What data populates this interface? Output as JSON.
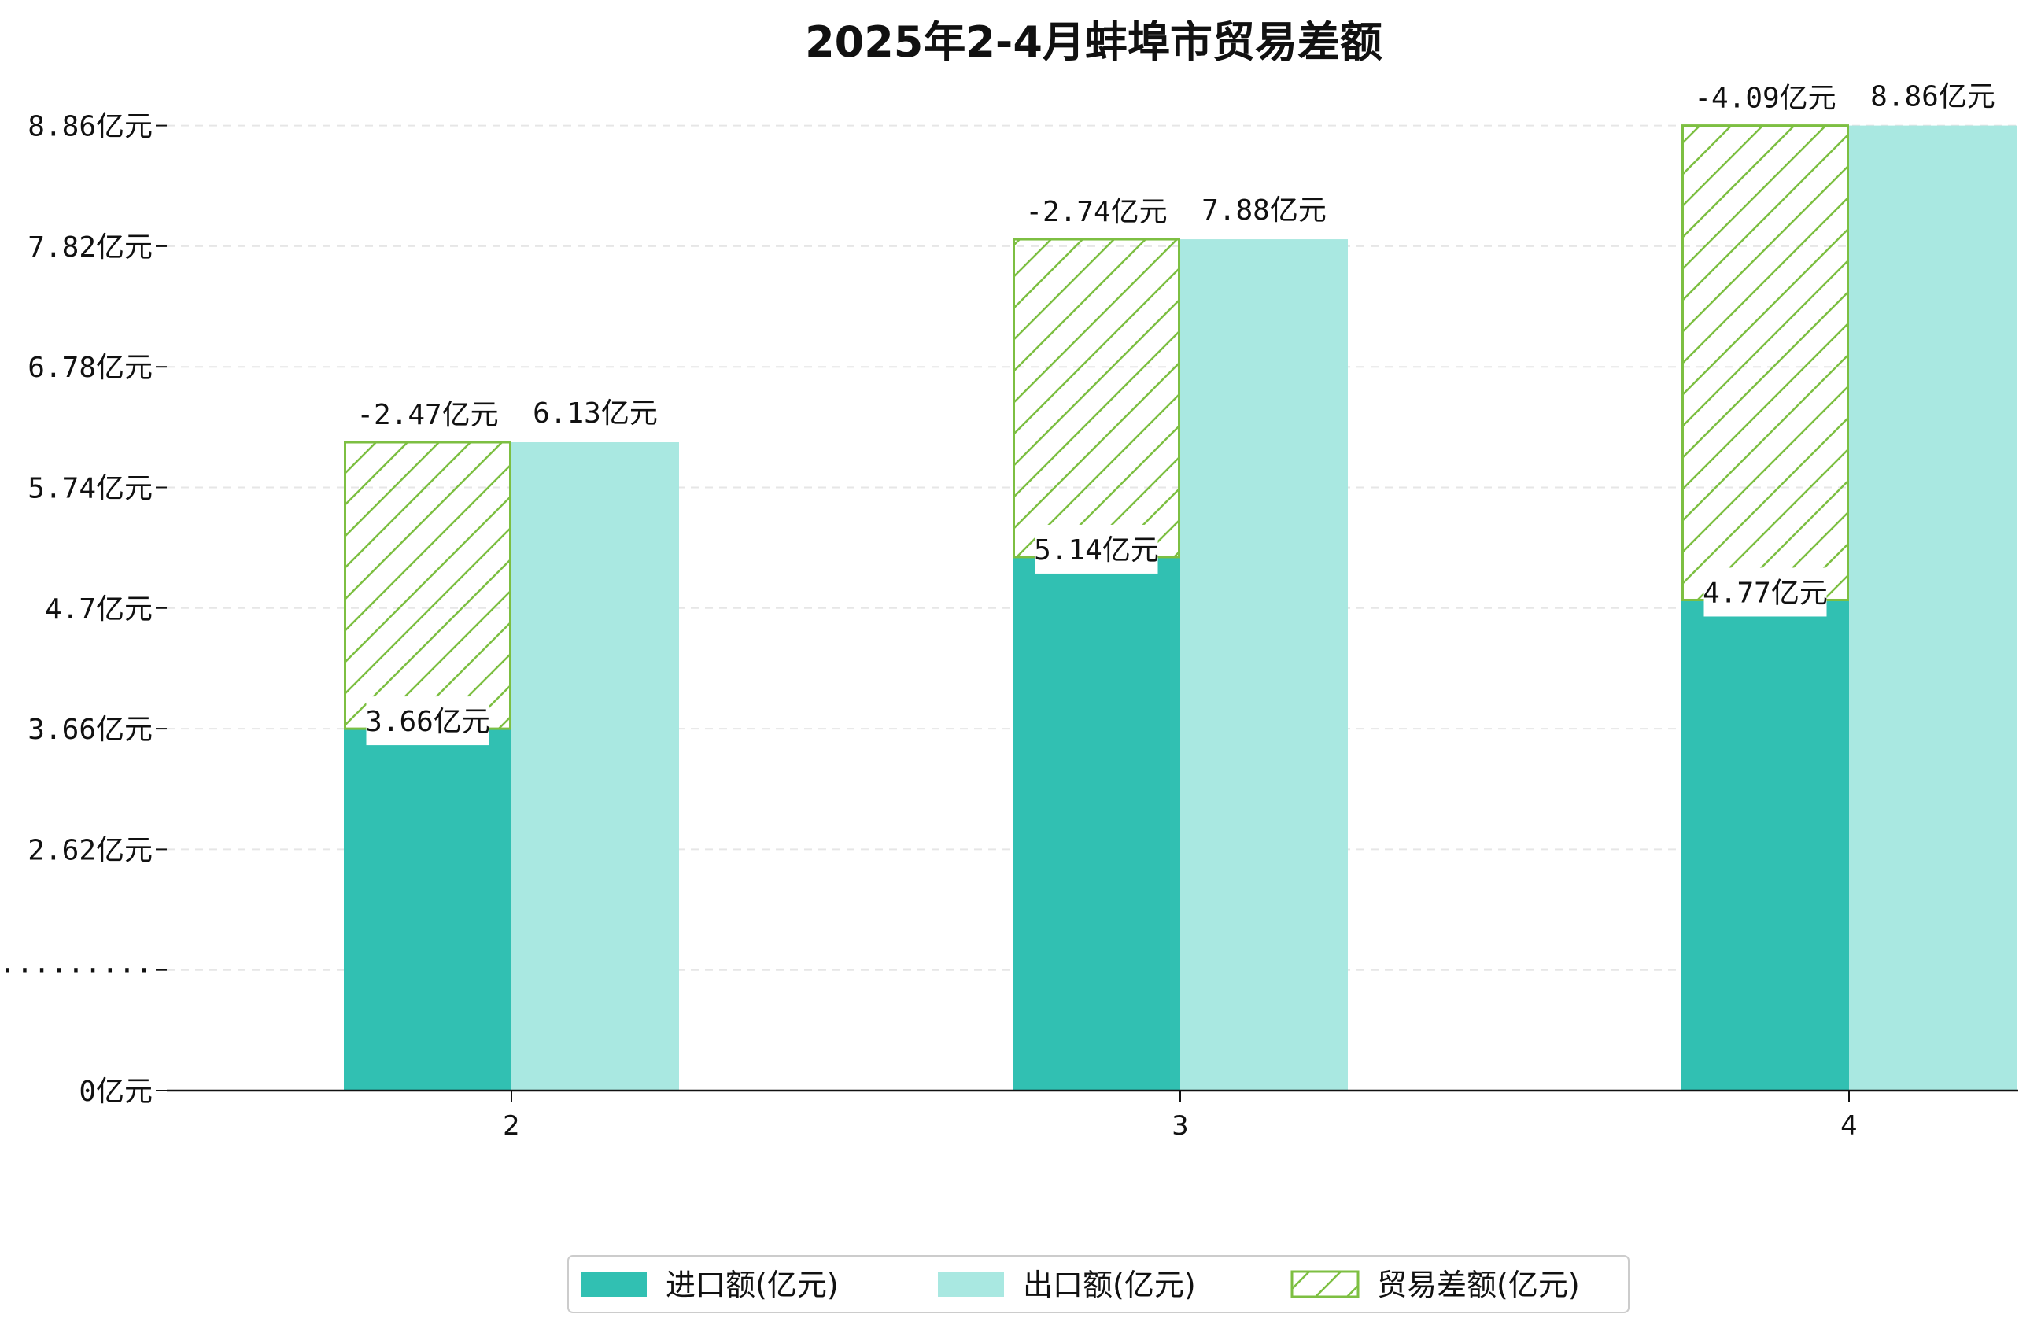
{
  "chart_data": {
    "type": "bar",
    "title": "2025年2-4月蚌埠市贸易差额",
    "categories": [
      "2",
      "3",
      "4"
    ],
    "series": [
      {
        "name": "进口额(亿元)",
        "values": [
          3.66,
          5.14,
          4.77
        ],
        "color": "#31c0b2",
        "labels": [
          "3.66亿元",
          "5.14亿元",
          "4.77亿元"
        ]
      },
      {
        "name": "出口额(亿元)",
        "values": [
          6.13,
          7.88,
          8.86
        ],
        "color": "#a9e8e1",
        "labels": [
          "6.13亿元",
          "7.88亿元",
          "8.86亿元"
        ]
      },
      {
        "name": "贸易差额(亿元)",
        "values": [
          -2.47,
          -2.74,
          -4.09
        ],
        "color": "#7dbf42",
        "hatch": true,
        "labels": [
          "-2.47亿元",
          "-2.74亿元",
          "-4.09亿元"
        ]
      }
    ],
    "y_ticks": [
      "0亿元",
      "·········",
      "2.62亿元",
      "3.66亿元",
      "4.7亿元",
      "5.74亿元",
      "6.78亿元",
      "7.82亿元",
      "8.86亿元"
    ],
    "y_axis_break": true,
    "grid": true,
    "legend_position": "bottom-center"
  }
}
